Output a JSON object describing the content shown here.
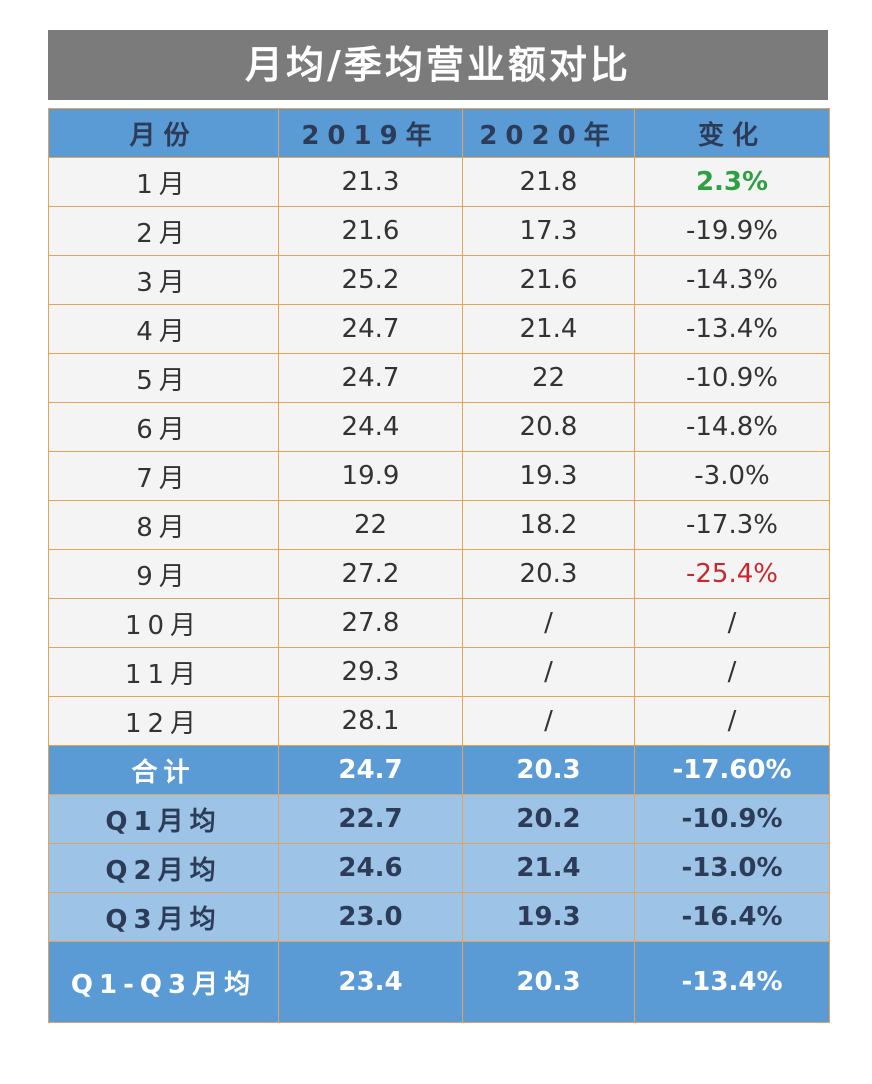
{
  "title": "月均/季均营业额对比",
  "table": {
    "header": [
      "月份",
      "2019年",
      "2020年",
      "变化"
    ],
    "rows": [
      [
        "1月",
        "21.3",
        "21.8",
        "2.3%"
      ],
      [
        "2月",
        "21.6",
        "17.3",
        "-19.9%"
      ],
      [
        "3月",
        "25.2",
        "21.6",
        "-14.3%"
      ],
      [
        "4月",
        "24.7",
        "21.4",
        "-13.4%"
      ],
      [
        "5月",
        "24.7",
        "22",
        "-10.9%"
      ],
      [
        "6月",
        "24.4",
        "20.8",
        "-14.8%"
      ],
      [
        "7月",
        "19.9",
        "19.3",
        "-3.0%"
      ],
      [
        "8月",
        "22",
        "18.2",
        "-17.3%"
      ],
      [
        "9月",
        "27.2",
        "20.3",
        "-25.4%"
      ],
      [
        "10月",
        "27.8",
        "/",
        "/"
      ],
      [
        "11月",
        "29.3",
        "/",
        "/"
      ],
      [
        "12月",
        "28.1",
        "/",
        "/"
      ]
    ],
    "summary": [
      [
        "合计",
        "24.7",
        "20.3",
        "-17.60%"
      ],
      [
        "Q1月均",
        "22.7",
        "20.2",
        "-10.9%"
      ],
      [
        "Q2月均",
        "24.6",
        "21.4",
        "-13.0%"
      ],
      [
        "Q3月均",
        "23.0",
        "19.3",
        "-16.4%"
      ],
      [
        "Q1-Q3月均",
        "23.4",
        "20.3",
        "-13.4%"
      ]
    ]
  }
}
